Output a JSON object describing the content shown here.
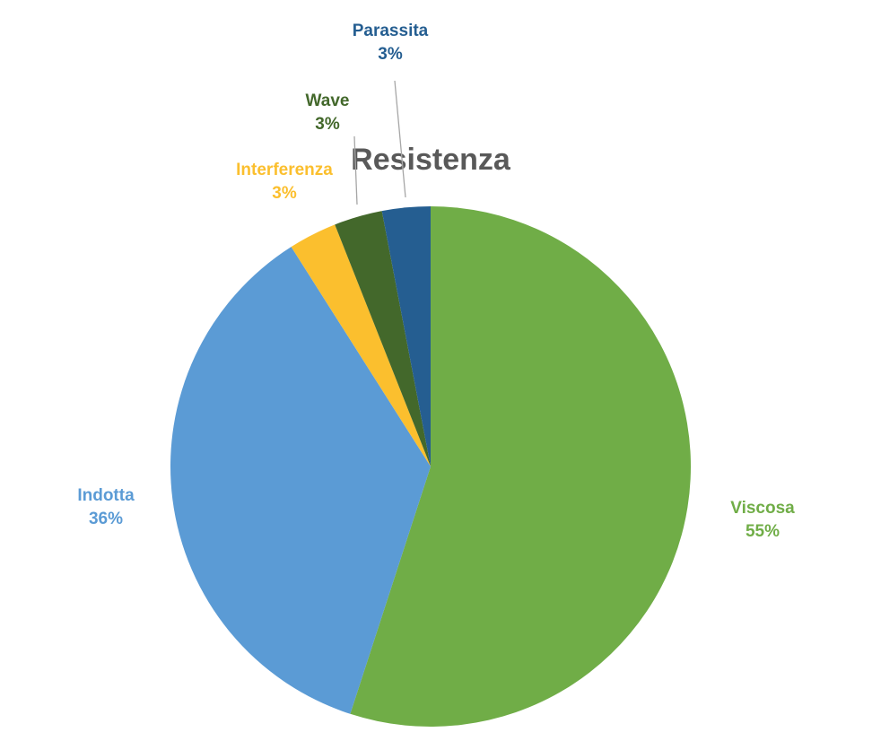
{
  "chart_data": {
    "type": "pie",
    "title": "Resistenza",
    "categories": [
      "Viscosa",
      "Indotta",
      "Interferenza",
      "Wave",
      "Parassita"
    ],
    "values": [
      55,
      36,
      3,
      3,
      3
    ],
    "value_labels": [
      "55%",
      "36%",
      "3%",
      "3%",
      "3%"
    ],
    "colors": [
      "#70ad47",
      "#5b9bd5",
      "#fbbf2e",
      "#43682b",
      "#255e91"
    ]
  }
}
